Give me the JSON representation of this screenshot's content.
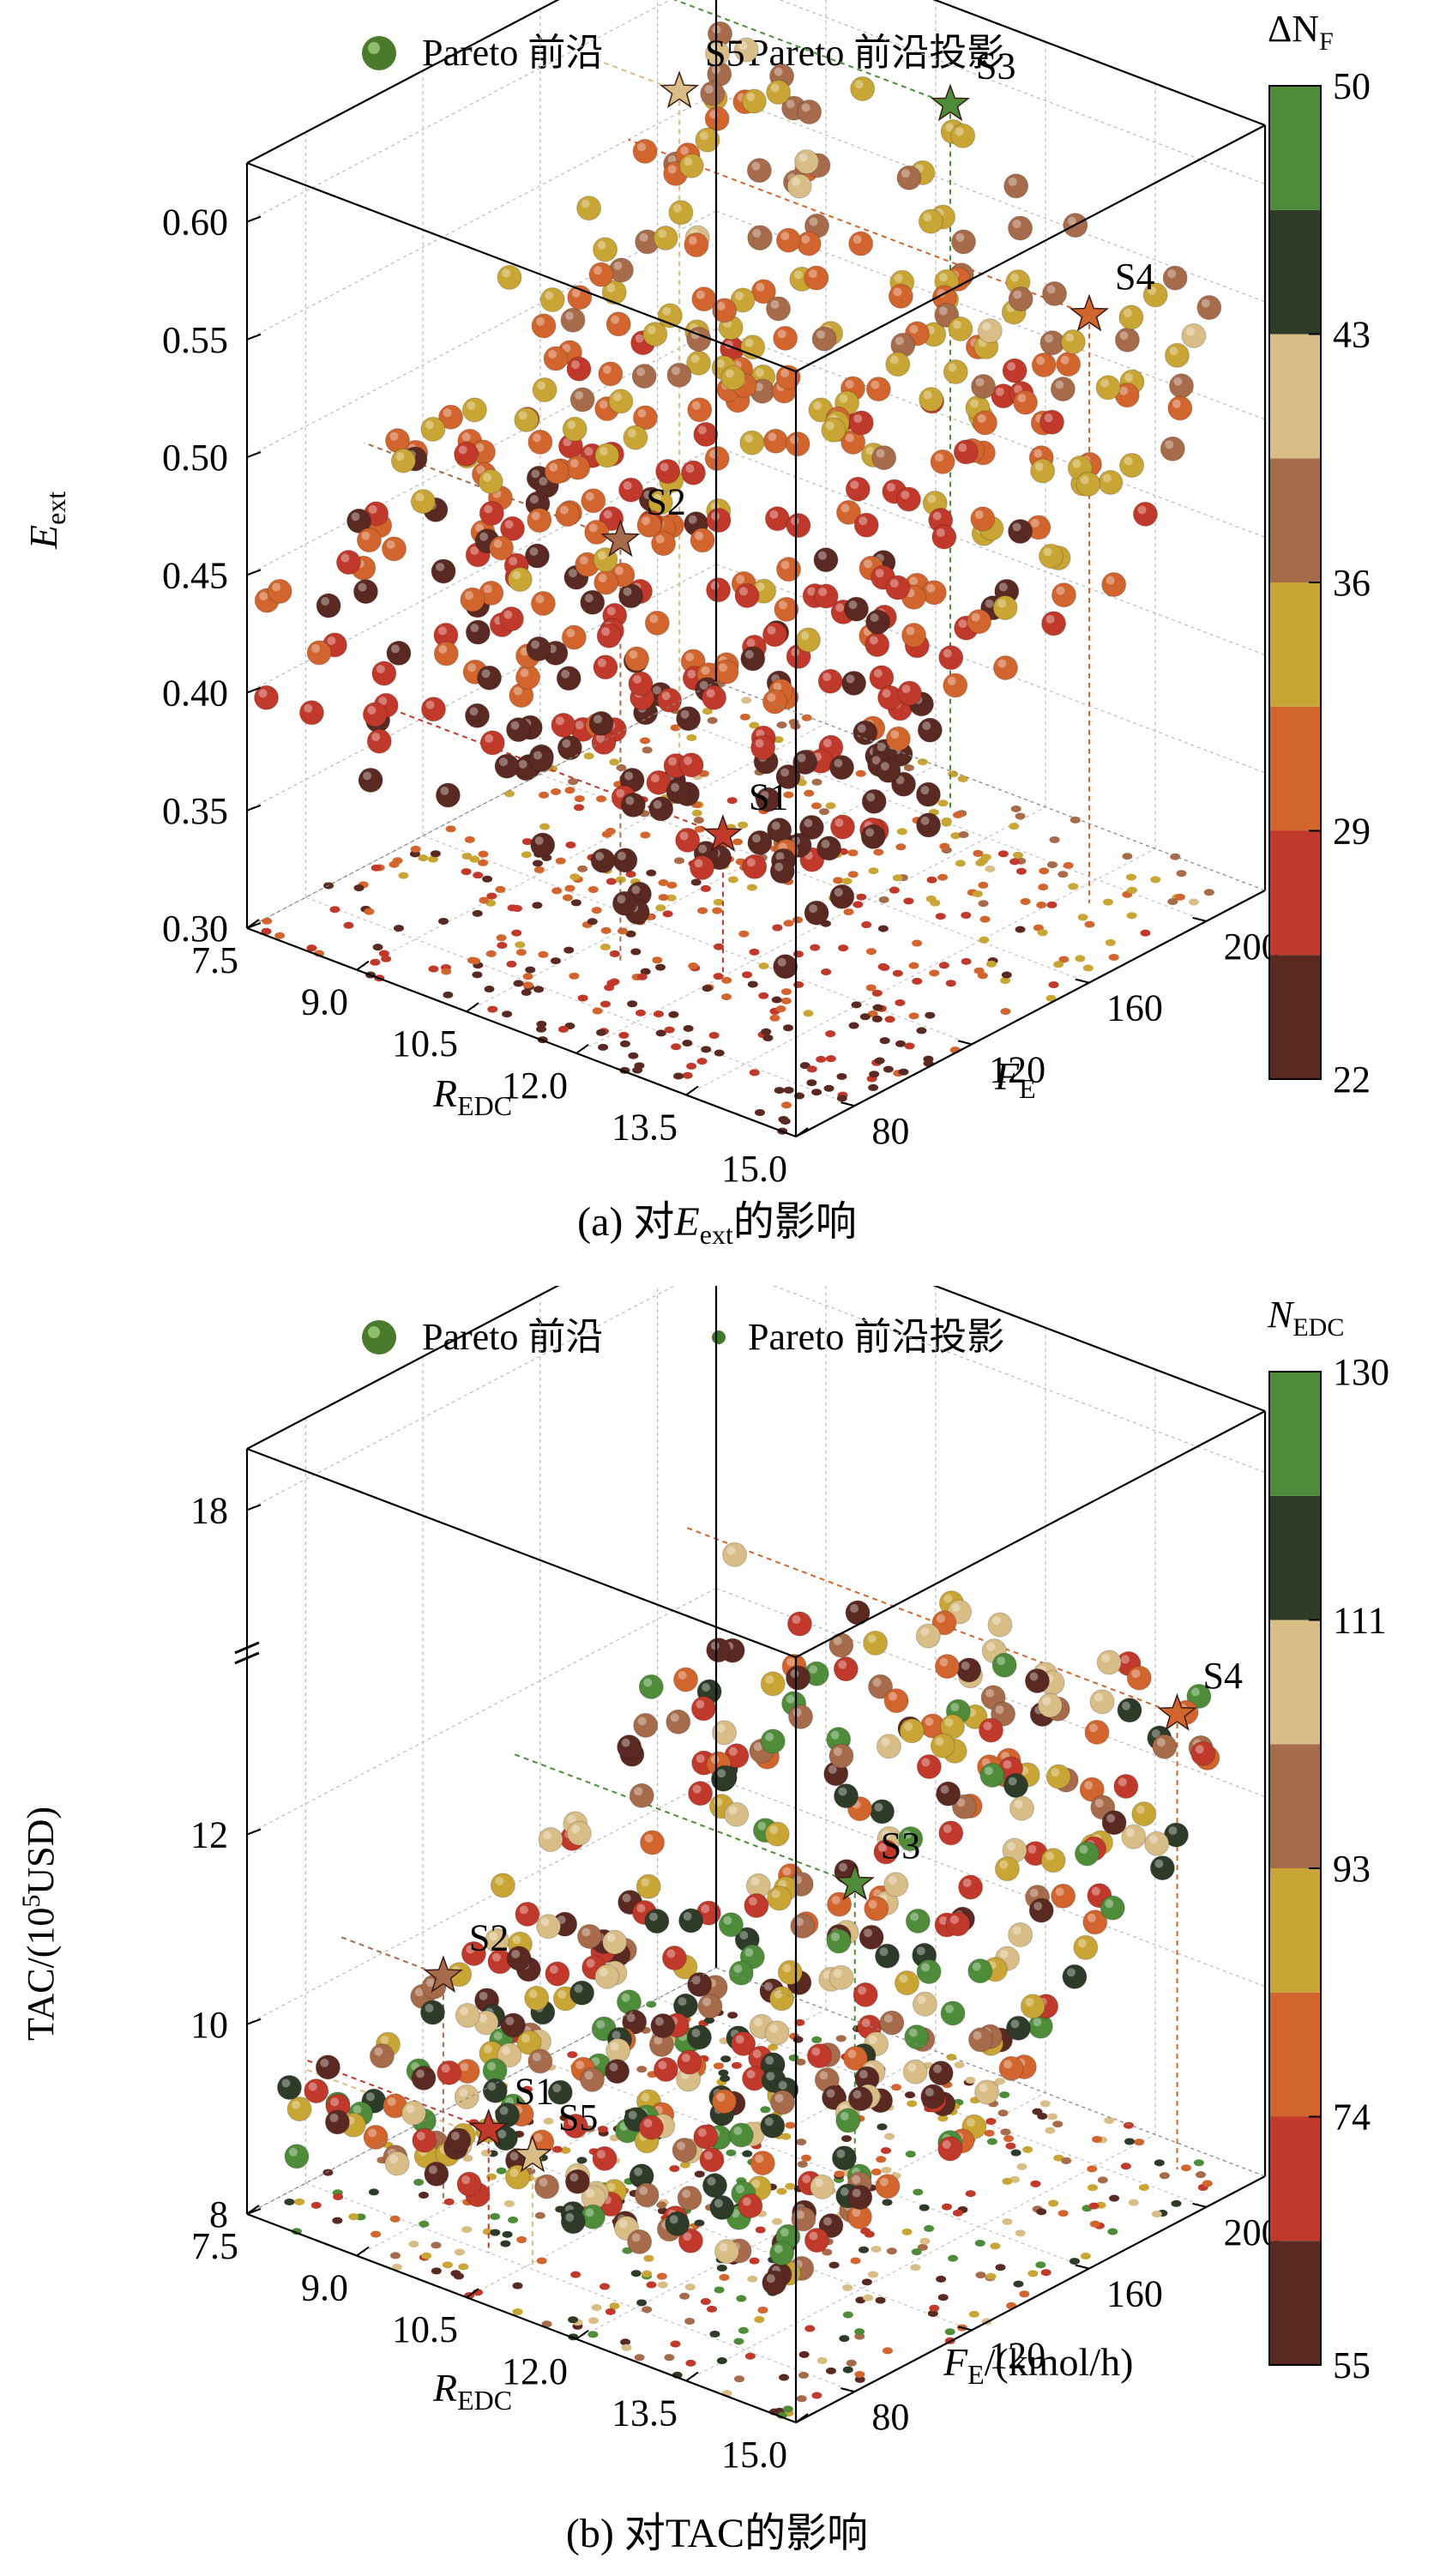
{
  "legend": {
    "front_label": "Pareto 前沿",
    "projection_label": "Pareto 前沿投影"
  },
  "colors": {
    "palette": [
      "#5a2a22",
      "#c0392b",
      "#d2652e",
      "#c8a534",
      "#a66b4a",
      "#d9bd87",
      "#2e3b28",
      "#4e8c3a"
    ],
    "axis": "#000000",
    "grid": "#bbbbbb",
    "legend_big": "#4a7a2c",
    "legend_small": "#3f7a2a"
  },
  "chart_data": [
    {
      "id": "a",
      "type": "scatter3d",
      "caption": {
        "prefix": "(a) 对",
        "var": "E",
        "sub": "ext",
        "suffix": "的影响"
      },
      "z_axis": {
        "label": "E",
        "label_sub": "ext",
        "ticks": [
          "0.30",
          "0.35",
          "0.40",
          "0.45",
          "0.50",
          "0.55",
          "0.60"
        ],
        "range": [
          0.3,
          0.625
        ]
      },
      "x_axis": {
        "label": "R",
        "label_sub": "EDC",
        "ticks": [
          "7.5",
          "9.0",
          "10.5",
          "12.0",
          "13.5",
          "15.0"
        ],
        "range": [
          7.5,
          15.0
        ]
      },
      "y_axis": {
        "label": "F",
        "label_sub": "E",
        "label_suffix": "",
        "ticks": [
          "80",
          "120",
          "160",
          "200"
        ],
        "range": [
          60,
          220
        ]
      },
      "colorbar": {
        "title": "ΔN",
        "title_sub": "F",
        "tick_labels": [
          "22",
          "29",
          "36",
          "43",
          "50"
        ],
        "range": [
          22,
          50
        ]
      },
      "solutions": [
        {
          "label": "S1",
          "r": 12.0,
          "f": 110,
          "z": 0.36
        },
        {
          "label": "S2",
          "r": 11.0,
          "f": 100,
          "z": 0.48
        },
        {
          "label": "S3",
          "r": 11.3,
          "f": 205,
          "z": 0.6
        },
        {
          "label": "S4",
          "r": 13.8,
          "f": 190,
          "z": 0.55
        },
        {
          "label": "S5",
          "r": 8.6,
          "f": 180,
          "z": 0.59
        }
      ],
      "point_count": 460,
      "seed": 7
    },
    {
      "id": "b",
      "type": "scatter3d",
      "caption": {
        "prefix": "(b) 对",
        "var": "TAC",
        "sub": "",
        "suffix": "的影响"
      },
      "z_axis": {
        "label": "TAC/(10",
        "label_sup": "5",
        "label_suffix": "USD)",
        "ticks": [
          "8",
          "10",
          "12",
          "18"
        ],
        "range": [
          8,
          18
        ],
        "axis_break": "13–17"
      },
      "x_axis": {
        "label": "R",
        "label_sub": "EDC",
        "ticks": [
          "7.5",
          "9.0",
          "10.5",
          "12.0",
          "13.5",
          "15.0"
        ],
        "range": [
          7.5,
          15.0
        ]
      },
      "y_axis": {
        "label": "F",
        "label_sub": "E",
        "label_suffix": "/(kmol/h)",
        "ticks": [
          "80",
          "120",
          "160",
          "200"
        ],
        "range": [
          60,
          220
        ]
      },
      "colorbar": {
        "title": "N",
        "title_sub": "EDC",
        "tick_labels": [
          "55",
          "74",
          "93",
          "111",
          "130"
        ],
        "range": [
          55,
          130
        ]
      },
      "solutions": [
        {
          "label": "S1",
          "r": 10.0,
          "f": 80,
          "z": 9.3
        },
        {
          "label": "S2",
          "r": 8.9,
          "f": 92,
          "z": 10.4
        },
        {
          "label": "S3",
          "r": 12.2,
          "f": 150,
          "z": 11.4
        },
        {
          "label": "S4",
          "r": 14.2,
          "f": 210,
          "z": 12.8
        },
        {
          "label": "S5",
          "r": 10.6,
          "f": 80,
          "z": 9.2
        }
      ],
      "point_count": 420,
      "seed": 13
    }
  ]
}
